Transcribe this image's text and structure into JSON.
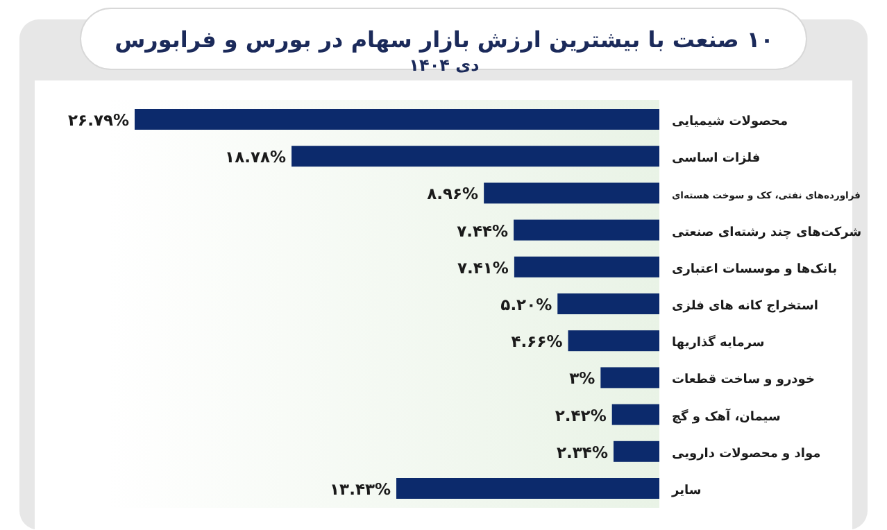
{
  "chart_data": {
    "type": "bar",
    "orientation": "horizontal",
    "title": "۱۰ صنعت با بیشترین ارزش بازار سهام در بورس و فرابورس",
    "subtitle": "دی ۱۴۰۴",
    "categories": [
      "محصولات شیمیایی",
      "فلزات اساسی",
      "فراورده‌های نفتی، کک و سوخت هسته‌ای",
      "شرکت‌های چند رشته‌ای صنعتی",
      "بانک‌ها و موسسات اعتباری",
      "استخراج کانه های فلزی",
      "سرمایه گذاریها",
      "خودرو و ساخت قطعات",
      "سیمان، آهک و گچ",
      "مواد و محصولات دارویی",
      "سایر"
    ],
    "values": [
      26.79,
      18.78,
      8.96,
      7.44,
      7.41,
      5.2,
      4.66,
      3,
      2.42,
      2.34,
      13.43
    ],
    "value_labels": [
      "۲۶.۷۹%",
      "۱۸.۷۸%",
      "۸.۹۶%",
      "۷.۴۴%",
      "۷.۴۱%",
      "۵.۲۰%",
      "۴.۶۶%",
      "۳%",
      "۲.۴۲%",
      "۲.۳۴%",
      "۱۳.۴۳%"
    ],
    "color": "#0c2a6c"
  }
}
